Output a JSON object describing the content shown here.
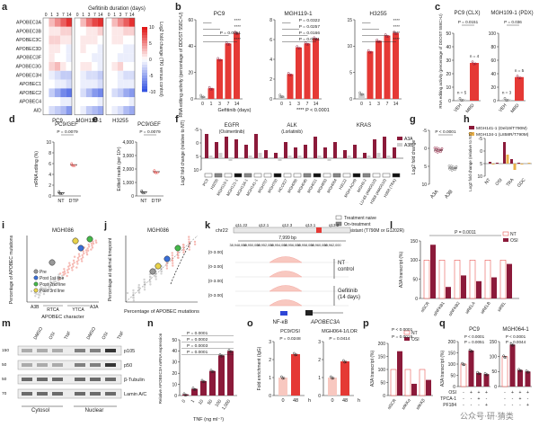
{
  "colors": {
    "maroon": "#8B1A3A",
    "red": "#E53935",
    "pink": "#F4A7A0",
    "lightpink": "#F8C8C0",
    "grey": "#9E9E9E",
    "lightgrey": "#CFCFCF",
    "black": "#111111",
    "blue": "#2F46D6",
    "orange": "#F3A24A",
    "gold": "#E8B04A"
  },
  "panels": {
    "a": {
      "letter": "a",
      "title": "Gefitinib duration (days)",
      "rows": [
        "APOBEC3A",
        "APOBEC3B",
        "APOBEC3C",
        "APOBEC3D",
        "APOBEC3F",
        "APOBEC3G",
        "APOBEC3H",
        "APOBEC1",
        "APOBEC2",
        "APOBEC4",
        "AID"
      ],
      "cols": [
        "0",
        "1",
        "3",
        "7",
        "14",
        "0",
        "1",
        "3",
        "7",
        "14",
        "0",
        "1",
        "3",
        "7",
        "14"
      ],
      "groups": [
        "PC9",
        "MGH119-1",
        "H3255"
      ],
      "colorbar_ticks": [
        "10",
        "5",
        "0",
        "-5",
        "-10"
      ],
      "colorbar_label": "Log2 fold change (TKI versus control)",
      "values": [
        [
          0,
          3,
          5,
          7,
          9,
          0,
          3,
          6,
          8,
          9,
          0,
          3,
          5,
          7,
          9
        ],
        [
          0,
          1,
          1,
          2,
          2,
          0,
          0,
          1,
          1,
          2,
          0,
          1,
          1,
          2,
          2
        ],
        [
          0,
          2,
          2,
          1,
          1,
          0,
          1,
          1,
          1,
          0,
          0,
          1,
          1,
          0,
          0
        ],
        [
          0,
          1,
          1,
          0,
          -1,
          0,
          1,
          0,
          0,
          -1,
          0,
          0,
          0,
          -1,
          -1
        ],
        [
          0,
          1,
          0,
          0,
          -1,
          0,
          0,
          0,
          -1,
          -1,
          0,
          0,
          -1,
          -1,
          -1
        ],
        [
          0,
          2,
          3,
          1,
          0,
          0,
          1,
          1,
          0,
          -1,
          0,
          1,
          2,
          0,
          0
        ],
        [
          0,
          -1,
          -2,
          -3,
          -3,
          0,
          -1,
          -2,
          -2,
          -3,
          0,
          0,
          -1,
          -2,
          -2
        ],
        [
          0,
          0,
          -1,
          -1,
          -2,
          0,
          -1,
          -1,
          -1,
          -2,
          0,
          0,
          -1,
          -1,
          -1
        ],
        [
          0,
          -3,
          -5,
          -7,
          -8,
          0,
          -2,
          -4,
          -6,
          -7,
          0,
          -2,
          -3,
          -5,
          -6
        ],
        [
          0,
          0,
          0,
          -1,
          -1,
          0,
          0,
          0,
          0,
          -1,
          0,
          0,
          0,
          0,
          -1
        ],
        [
          0,
          -2,
          -3,
          -4,
          -6,
          0,
          -1,
          -3,
          -4,
          -5,
          0,
          -1,
          -2,
          -4,
          -5
        ]
      ]
    },
    "b": {
      "letter": "b",
      "ylabel": "RNA editing activity (percentage of DDOST 558C>U)",
      "xlabel": "Gefitinib (days)",
      "footer": "**** P < 0.0001",
      "subs": [
        {
          "title": "PC9",
          "ymax": 60,
          "ticks": [
            "0",
            "20",
            "40",
            "60"
          ],
          "xt": [
            "0",
            "1",
            "3",
            "7",
            "14"
          ],
          "values": [
            2,
            8,
            30,
            42,
            50
          ],
          "p": [
            "****",
            "****",
            "P = 0.0051",
            "****"
          ]
        },
        {
          "title": "MGH119-1",
          "ymax": 8,
          "ticks": [
            "0",
            "2",
            "4",
            "6",
            "8"
          ],
          "xt": [
            "0",
            "1",
            "3",
            "7",
            "14"
          ],
          "values": [
            0.3,
            2.5,
            5.2,
            5.6,
            6.1
          ],
          "p": [
            "P = 0.0322",
            "P = 0.0257",
            "P = 0.0166",
            "P = 0.0021"
          ]
        },
        {
          "title": "H3255",
          "ymax": 15,
          "ticks": [
            "0",
            "5",
            "10",
            "15"
          ],
          "xt": [
            "0",
            "1",
            "3",
            "7",
            "14"
          ],
          "values": [
            1,
            9,
            11,
            12,
            12.5
          ],
          "p": [
            "****",
            "****",
            "****",
            "****"
          ]
        }
      ]
    },
    "c": {
      "letter": "c",
      "ylabel": "RNA editing activity (percentage of DDOST 558C>U)",
      "subs": [
        {
          "title": "PC9 (CLX)",
          "ymax": 50,
          "ticks": [
            "0",
            "10",
            "20",
            "30",
            "40",
            "50"
          ],
          "cats": [
            "VEH",
            "MRD"
          ],
          "values": [
            1,
            28
          ],
          "n": [
            "n = 5",
            "n = 4"
          ],
          "p": "P = 0.0151"
        },
        {
          "title": "MGH109-1 (PDX)",
          "ymax": 100,
          "ticks": [
            "0",
            "20",
            "40",
            "60",
            "80",
            "100"
          ],
          "cats": [
            "VEH",
            "MRD"
          ],
          "values": [
            2,
            35
          ],
          "n": [
            "n = 3",
            "n = 5"
          ],
          "p": "P = 0.036"
        }
      ]
    },
    "d": {
      "letter": "d",
      "title": "PC9/GEF",
      "ylabel": "mRNA editing (%)",
      "ticks": [
        "0",
        "2",
        "4",
        "6",
        "8",
        "10"
      ],
      "cats": [
        "NT",
        "DTP"
      ],
      "values": [
        0.6,
        5.8
      ],
      "p": "P = 0.0079"
    },
    "e": {
      "letter": "e",
      "title": "PC9/GEF",
      "ylabel": "Edited reads (per 10⁶)",
      "ticks": [
        "0",
        "1,000",
        "2,000",
        "3,000",
        "4,000"
      ],
      "cats": [
        "NT",
        "DTP"
      ],
      "values": [
        300,
        1800
      ],
      "p": "P = 0.0079"
    },
    "f": {
      "letter": "f",
      "ylabel": "Log2 fold change (relative to NT)",
      "ticks": [
        "10",
        "5",
        "0",
        "-5"
      ],
      "groups": [
        {
          "name": "EGFR",
          "sub": "(Osimertinib)"
        },
        {
          "name": "ALK",
          "sub": "(Lorlatinib)"
        },
        {
          "name": "KRAS",
          "sub": ""
        }
      ],
      "legend": [
        "A3A",
        "A3B"
      ],
      "cell_lines": [
        "PC9",
        "H3255",
        "MGH119-1",
        "MGH121-1",
        "MGH134-1",
        "MGH141-1",
        "MGH707",
        "MGH700",
        "HCC827",
        "MGH086",
        "MGH045",
        "MGH021",
        "MGH893",
        "MGH064",
        "H3122",
        "MGH-ACH9",
        "MGH9-2",
        "LU-65 (AMG510)",
        "H358 (AMG510)",
        "H358 (TRA)"
      ],
      "a3a": [
        9,
        6,
        8,
        7,
        5,
        9,
        3,
        2,
        6,
        4,
        5,
        8,
        4,
        6,
        3,
        5,
        2,
        7,
        8,
        4
      ],
      "a3b": [
        1,
        2,
        -1,
        0,
        1,
        2,
        0,
        -1,
        1,
        1,
        0,
        1,
        -1,
        0,
        1,
        0,
        1,
        2,
        1,
        0
      ],
      "track_legend": [
        "Treatment naive",
        "On-treatment",
        "Resistant (T790M or G1202R)"
      ]
    },
    "g": {
      "letter": "g",
      "ylabel": "Log2 fold change",
      "ticks": [
        "10",
        "5",
        "0",
        "-5"
      ],
      "cats": [
        "A3A",
        "A3B"
      ],
      "p": "P < 0.0001"
    },
    "h": {
      "letter": "h",
      "ylabel": "Log2 fold change (relative to NT)",
      "legend": [
        "MGH141-1 (Del19/T790M)",
        "MGH134-1 (L858R/T790M)"
      ],
      "ticks": [
        "10",
        "5",
        "0",
        "-5"
      ],
      "cats": [
        "OSI",
        "TRA",
        "GDC"
      ],
      "sub_labels": [
        "NT",
        "OSI",
        "TRA",
        "GDC"
      ]
    },
    "i": {
      "letter": "i",
      "title": "MGH086",
      "ylabel": "Percentage of APOBEC mutations",
      "xlabel": "APOBEC character",
      "xt": [
        "RTCA",
        "YTCA"
      ],
      "legend": [
        "Pre",
        "Post 1st line",
        "Post 2nd line",
        "Post 3rd line"
      ],
      "axis_mark": "A3B",
      "axis_mark2": "A3A"
    },
    "j": {
      "letter": "j",
      "title": "MGH086",
      "ylabel": "Percentage at optimal timepoint",
      "xlabel": "Percentage of APOBEC mutations"
    },
    "k": {
      "letter": "k",
      "chrom": "chr22",
      "bands": [
        "q11.22",
        "q12.1",
        "q12.3",
        "q13.1",
        "q13.2"
      ],
      "scale": "7,999 bp",
      "coords": [
        "38,948,000",
        "38,950,000",
        "38,952,000",
        "38,954,000",
        "38,956,000",
        "38,958,000",
        "38,960,000",
        "38,962,000"
      ],
      "tracks": [
        "[0-3.00]",
        "[0-3.00]",
        "[0-3.00]",
        "[0-3.00]"
      ],
      "label1": "NT control",
      "label2": "Gefitinib (14 days)",
      "gene": "APOBEC3A",
      "nfkb": "NF-κB"
    },
    "l": {
      "letter": "l",
      "ylabel": "A3A transcript (%)",
      "legend": [
        "NT",
        "OSI"
      ],
      "ticks": [
        "0",
        "50",
        "100",
        "150"
      ],
      "p": "P = 0.0011",
      "cats": [
        "siSCR",
        "siNFKB1",
        "siNFKB2",
        "siRELA",
        "siRELB",
        "siREL"
      ],
      "nt": [
        100,
        100,
        100,
        100,
        100,
        100
      ],
      "osi": [
        140,
        30,
        60,
        45,
        55,
        90
      ]
    },
    "m": {
      "letter": "m",
      "headers": [
        "DMSO",
        "OSI",
        "TNF",
        "DMSO",
        "OSI",
        "TNF"
      ],
      "bands": [
        "p105",
        "p50",
        "β-Tubulin",
        "Lamin A/C"
      ],
      "kda": [
        "150",
        "50",
        "50",
        "70"
      ],
      "groups": [
        "Cytosol",
        "Nuclear"
      ]
    },
    "n": {
      "letter": "n",
      "ylabel": "Relative APOBEC3A mRNA expression",
      "xlabel": "TNF (ng ml⁻¹)",
      "ticks": [
        "0",
        "10",
        "20",
        "30",
        "40",
        "50"
      ],
      "cats": [
        "0",
        "1",
        "10",
        "50",
        "100",
        "1,000"
      ],
      "values": [
        1,
        6,
        13,
        22,
        36,
        40
      ],
      "p": [
        "P = 0.0001",
        "P = 0.0002",
        "P = 0.0003",
        "P = 0.0001"
      ]
    },
    "o": {
      "letter": "o",
      "ylabel": "Fold enrichment (IgG)",
      "subs": [
        {
          "title": "PC9/OSI",
          "p": "P = 0.0248",
          "cats": [
            "0",
            "48"
          ],
          "values": [
            1,
            2.3
          ],
          "ticks": [
            "0",
            "1",
            "2",
            "3"
          ]
        },
        {
          "title": "MGH064-1/LOR",
          "p": "P = 0.0414",
          "cats": [
            "0",
            "48"
          ],
          "values": [
            1,
            1.9
          ],
          "ticks": [
            "0",
            "1",
            "2",
            "3"
          ]
        }
      ],
      "xlabel": "h"
    },
    "p": {
      "letter": "p",
      "ylabel": "A3A transcript (%)",
      "legend": [
        "NT",
        "OSI"
      ],
      "ticks": [
        "0",
        "50",
        "100",
        "150",
        "200"
      ],
      "p": [
        "P < 0.0001",
        "P = 0.0015"
      ],
      "cats": [
        "siSCR",
        "siIKKα",
        "siIKKβ"
      ],
      "nt": [
        100,
        100,
        100
      ],
      "osi": [
        170,
        45,
        60
      ]
    },
    "q": {
      "letter": "q",
      "ylabel": "A3A transcript (%)",
      "subs": [
        {
          "title": "PC9",
          "ymax": 200,
          "ticks": [
            "0",
            "50",
            "100",
            "150",
            "200"
          ],
          "values": [
            100,
            160,
            60,
            55
          ],
          "p": [
            "P < 0.0001",
            "P = 0.0051"
          ]
        },
        {
          "title": "MGH064-1",
          "ymax": 150,
          "ticks": [
            "0",
            "50",
            "100",
            "150"
          ],
          "values": [
            100,
            140,
            55,
            50
          ],
          "p": [
            "P < 0.0001",
            "P = 0.0044"
          ]
        }
      ],
      "rows": [
        "OSI",
        "TPCA-1",
        "PF184"
      ],
      "signs": [
        [
          "-",
          "+",
          "+",
          "+"
        ],
        [
          "-",
          "-",
          "+",
          "-"
        ],
        [
          "-",
          "-",
          "-",
          "+"
        ]
      ]
    }
  },
  "watermark": "公众号·研·猜类"
}
